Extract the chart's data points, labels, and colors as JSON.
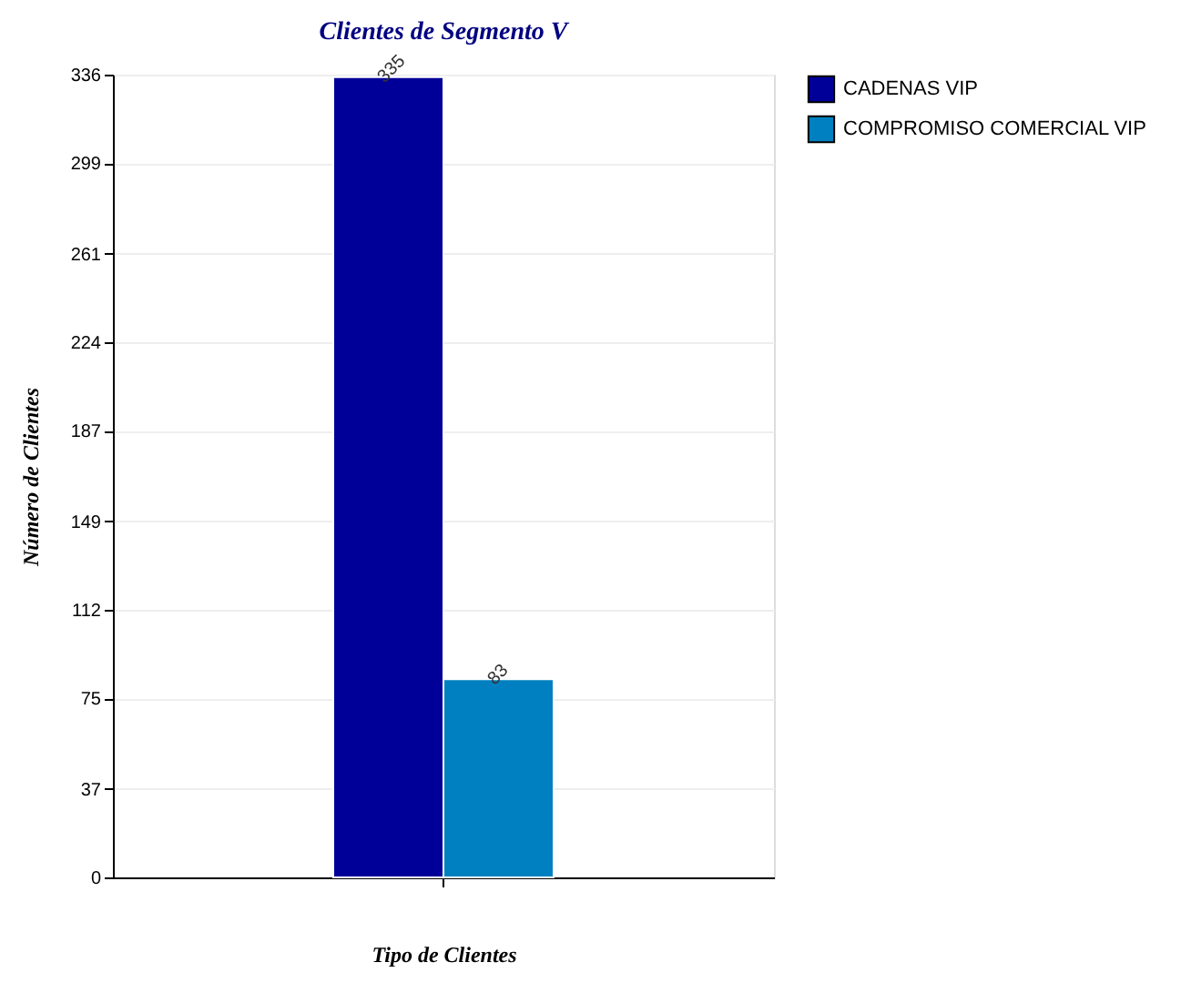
{
  "chart_data": {
    "type": "bar",
    "title": "Clientes de Segmento V",
    "xlabel": "Tipo de Clientes",
    "ylabel": "Número de Clientes",
    "categories": [
      null
    ],
    "series": [
      {
        "name": "CADENAS VIP",
        "color": "#000099",
        "values": [
          335
        ]
      },
      {
        "name": "COMPROMISO COMERCIAL VIP",
        "color": "#0080c0",
        "values": [
          83
        ]
      }
    ],
    "ylim": [
      0,
      336
    ],
    "yticks": [
      0,
      37,
      75,
      112,
      149,
      187,
      224,
      261,
      299,
      336
    ],
    "grid": "y",
    "legend": "right",
    "data_labels": true
  }
}
